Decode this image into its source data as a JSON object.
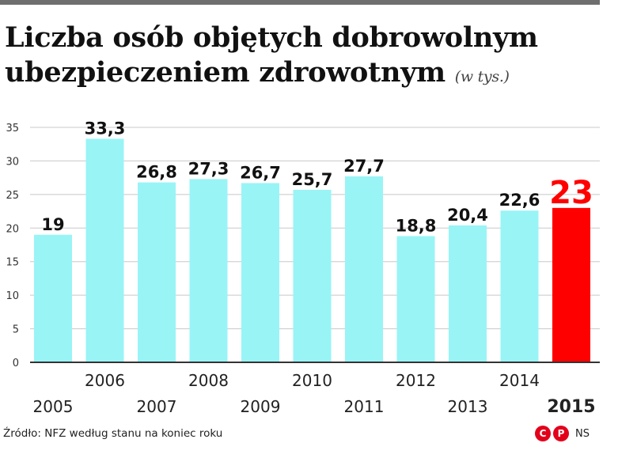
{
  "header": {
    "title_line1": "Liczba osób objętych dobrowolnym",
    "title_line2": "ubezpieczeniem zdrowotnym",
    "title_unit": "(w tys.)"
  },
  "chart_data": {
    "type": "bar",
    "title": "Liczba osób objętych dobrowolnym ubezpieczeniem zdrowotnym",
    "unit": "(w tys.)",
    "categories": [
      "2005",
      "2006",
      "2007",
      "2008",
      "2009",
      "2010",
      "2011",
      "2012",
      "2013",
      "2014",
      "2015"
    ],
    "values": [
      19,
      33.3,
      26.8,
      27.3,
      26.7,
      25.7,
      27.7,
      18.8,
      20.4,
      22.6,
      23
    ],
    "value_labels": [
      "19",
      "33,3",
      "26,8",
      "27,3",
      "26,7",
      "25,7",
      "27,7",
      "18,8",
      "20,4",
      "22,6",
      "23"
    ],
    "highlight_index": 10,
    "ylim": [
      0,
      35
    ],
    "yticks": [
      "0",
      "5",
      "10",
      "15",
      "20",
      "25",
      "30",
      "35"
    ],
    "grid": true,
    "xlabel": "",
    "ylabel": "",
    "colors": {
      "bar": "#99f4f6",
      "highlight": "#ff0000",
      "grid": "#c8c8c8",
      "axis": "#333333"
    }
  },
  "footer": {
    "source": "Źródło: NFZ według stanu na koniec roku",
    "logo_glyphs": [
      "C",
      "P"
    ],
    "initials": "NS"
  }
}
